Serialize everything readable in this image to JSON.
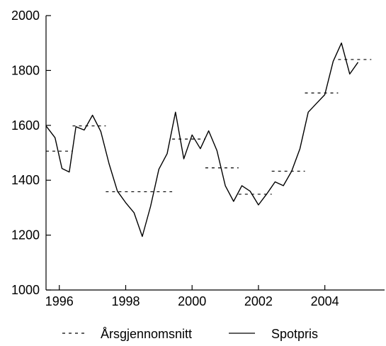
{
  "chart_data": {
    "type": "line",
    "title": "",
    "xlabel": "",
    "ylabel": "",
    "xlim": [
      1995.6,
      2005.8
    ],
    "ylim": [
      1000,
      2000
    ],
    "yticks": [
      1000,
      1200,
      1400,
      1600,
      1800,
      2000
    ],
    "xticks": [
      1996,
      1998,
      2000,
      2002,
      2004
    ],
    "ytick_labels": [
      "1000",
      "1200",
      "1400",
      "1600",
      "1800",
      "2000"
    ],
    "xtick_labels": [
      "1996",
      "1998",
      "2000",
      "2002",
      "2004"
    ],
    "grid": false,
    "legend_position": "bottom",
    "series": [
      {
        "name": "Spotpris",
        "style": "solid",
        "color": "#000000",
        "points": [
          [
            1995.6,
            1598
          ],
          [
            1995.87,
            1555
          ],
          [
            1996.08,
            1443
          ],
          [
            1996.3,
            1430
          ],
          [
            1996.5,
            1595
          ],
          [
            1996.75,
            1583
          ],
          [
            1997.0,
            1637
          ],
          [
            1997.25,
            1578
          ],
          [
            1997.5,
            1460
          ],
          [
            1997.75,
            1360
          ],
          [
            1998.0,
            1318
          ],
          [
            1998.25,
            1282
          ],
          [
            1998.5,
            1195
          ],
          [
            1998.75,
            1305
          ],
          [
            1999.0,
            1440
          ],
          [
            1999.25,
            1497
          ],
          [
            1999.5,
            1648
          ],
          [
            1999.75,
            1478
          ],
          [
            2000.0,
            1565
          ],
          [
            2000.25,
            1515
          ],
          [
            2000.5,
            1580
          ],
          [
            2000.75,
            1508
          ],
          [
            2001.0,
            1380
          ],
          [
            2001.25,
            1323
          ],
          [
            2001.5,
            1380
          ],
          [
            2001.75,
            1360
          ],
          [
            2002.0,
            1310
          ],
          [
            2002.25,
            1350
          ],
          [
            2002.5,
            1394
          ],
          [
            2002.75,
            1380
          ],
          [
            2003.0,
            1433
          ],
          [
            2003.25,
            1515
          ],
          [
            2003.5,
            1648
          ],
          [
            2003.75,
            1680
          ],
          [
            2004.0,
            1712
          ],
          [
            2004.25,
            1833
          ],
          [
            2004.5,
            1900
          ],
          [
            2004.75,
            1787
          ],
          [
            2005.0,
            1830
          ]
        ]
      },
      {
        "name": "Årsgjennomsnitt",
        "style": "dashed",
        "color": "#000000",
        "segments": [
          {
            "x": [
              1995.6,
              1996.4
            ],
            "y": 1506
          },
          {
            "x": [
              1996.4,
              1997.4
            ],
            "y": 1598
          },
          {
            "x": [
              1997.4,
              1999.4
            ],
            "y": 1358
          },
          {
            "x": [
              1999.4,
              2000.4
            ],
            "y": 1550
          },
          {
            "x": [
              2000.4,
              2001.4
            ],
            "y": 1445
          },
          {
            "x": [
              2001.4,
              2002.4
            ],
            "y": 1349
          },
          {
            "x": [
              2002.4,
              2003.4
            ],
            "y": 1433
          },
          {
            "x": [
              2003.4,
              2004.4
            ],
            "y": 1718
          },
          {
            "x": [
              2004.4,
              2005.4
            ],
            "y": 1840
          }
        ]
      }
    ]
  }
}
